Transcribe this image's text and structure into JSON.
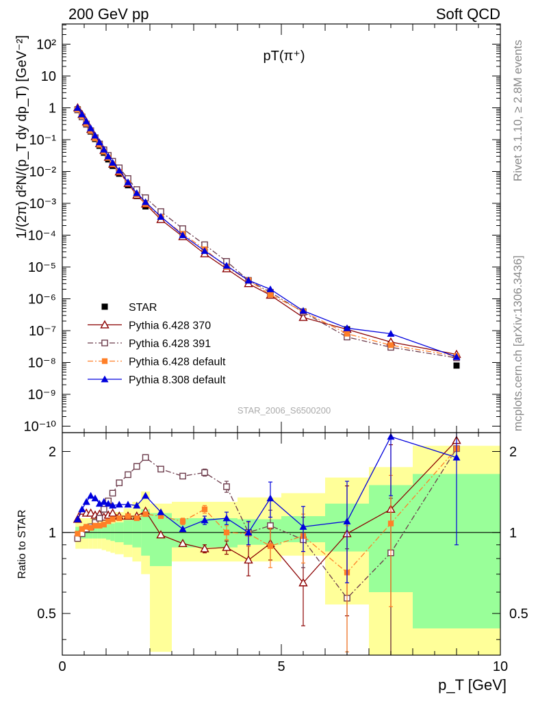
{
  "header": {
    "left": "200 GeV pp",
    "right": "Soft QCD"
  },
  "side_text": {
    "rivet": "Rivet 3.1.10, ≥ 2.8M events",
    "mcplots": "mcplots.cern.ch [arXiv:1306.3436]"
  },
  "chart_data": [
    {
      "type": "scatter",
      "title": "pT(π⁺)",
      "watermark": "STAR_2006_S6500200",
      "ylabel": "1/(2π) d²N/(p_T dy dp_T) [GeV⁻²]",
      "xlim": [
        0,
        10
      ],
      "ylim": [
        3e-11,
        400
      ],
      "yscale": "log",
      "legend_position": "bottom-left",
      "legend": [
        "STAR",
        "Pythia 6.428 370",
        "Pythia 6.428 391",
        "Pythia 6.428 default",
        "Pythia 8.308 default"
      ],
      "ytick_labels": [
        "10⁻¹⁰",
        "10⁻⁹",
        "10⁻⁸",
        "10⁻⁷",
        "10⁻⁶",
        "10⁻⁵",
        "10⁻⁴",
        "10⁻³",
        "10⁻²",
        "10⁻¹",
        "1",
        "10",
        "10²"
      ],
      "series": [
        {
          "name": "STAR",
          "color": "#000000",
          "marker": "filled-square",
          "dash": "none",
          "x": [
            0.35,
            0.45,
            0.55,
            0.65,
            0.75,
            0.85,
            0.95,
            1.05,
            1.15,
            1.3,
            1.5,
            1.7,
            1.9,
            2.25,
            2.75,
            3.25,
            3.75,
            4.25,
            4.75,
            5.5,
            6.5,
            7.5,
            9.0
          ],
          "y": [
            0.9,
            0.52,
            0.3,
            0.18,
            0.105,
            0.064,
            0.039,
            0.024,
            0.015,
            0.0085,
            0.0037,
            0.0017,
            0.0008,
            0.00032,
            0.0001,
            3e-05,
            1e-05,
            3.8e-06,
            1.5e-06,
            4e-07,
            1.1e-07,
            3.6e-08,
            8e-09
          ]
        },
        {
          "name": "Pythia 6.428 370",
          "color": "#8b0000",
          "marker": "open-triangle",
          "dash": "none",
          "x": [
            0.35,
            0.45,
            0.55,
            0.65,
            0.75,
            0.85,
            0.95,
            1.05,
            1.15,
            1.3,
            1.5,
            1.7,
            1.9,
            2.25,
            2.75,
            3.25,
            3.75,
            4.25,
            4.75,
            5.5,
            6.5,
            7.5,
            9.0
          ],
          "y": [
            1.0,
            0.62,
            0.36,
            0.21,
            0.125,
            0.075,
            0.046,
            0.028,
            0.017,
            0.0097,
            0.0042,
            0.0018,
            0.00095,
            0.00031,
            9e-05,
            2.6e-05,
            8.8e-06,
            3e-06,
            1.3e-06,
            2.6e-07,
            1.1e-07,
            4.4e-08,
            1.8e-08
          ]
        },
        {
          "name": "Pythia 6.428 391",
          "color": "#6b3a4a",
          "marker": "open-square",
          "dash": "dashdot",
          "x": [
            0.35,
            0.45,
            0.55,
            0.65,
            0.75,
            0.85,
            0.95,
            1.05,
            1.15,
            1.3,
            1.5,
            1.7,
            1.9,
            2.25,
            2.75,
            3.25,
            3.75,
            4.25,
            4.75,
            5.5,
            6.5,
            7.5,
            9.0
          ],
          "y": [
            0.86,
            0.52,
            0.31,
            0.19,
            0.115,
            0.073,
            0.048,
            0.032,
            0.021,
            0.013,
            0.006,
            0.0027,
            0.0015,
            0.00055,
            0.00016,
            5e-05,
            1.5e-05,
            3.8e-06,
            1.6e-06,
            3.8e-07,
            6.3e-08,
            3e-08,
            1.4e-08
          ]
        },
        {
          "name": "Pythia 6.428 default",
          "color": "#ff7f27",
          "marker": "filled-square",
          "dash": "dashdot",
          "x": [
            0.35,
            0.45,
            0.55,
            0.65,
            0.75,
            0.85,
            0.95,
            1.05,
            1.15,
            1.3,
            1.5,
            1.7,
            1.9,
            2.25,
            2.75,
            3.25,
            3.75,
            4.25,
            4.75,
            5.5,
            6.5,
            7.5,
            9.0
          ],
          "y": [
            0.9,
            0.55,
            0.32,
            0.19,
            0.11,
            0.069,
            0.042,
            0.027,
            0.017,
            0.0097,
            0.0043,
            0.0019,
            0.00095,
            0.00037,
            0.00011,
            3.6e-05,
            1e-05,
            3.8e-06,
            1.35e-06,
            4e-07,
            8e-08,
            3.5e-08,
            1.6e-08
          ]
        },
        {
          "name": "Pythia 8.308 default",
          "color": "#0000dd",
          "marker": "filled-triangle",
          "dash": "none",
          "x": [
            0.35,
            0.45,
            0.55,
            0.65,
            0.75,
            0.85,
            0.95,
            1.05,
            1.15,
            1.3,
            1.5,
            1.7,
            1.9,
            2.25,
            2.75,
            3.25,
            3.75,
            4.25,
            4.75,
            5.5,
            6.5,
            7.5,
            9.0
          ],
          "y": [
            1.0,
            0.63,
            0.38,
            0.23,
            0.135,
            0.083,
            0.049,
            0.03,
            0.019,
            0.0108,
            0.0046,
            0.0021,
            0.0011,
            0.00038,
            0.0001,
            3.2e-05,
            1.1e-05,
            3.8e-06,
            2e-06,
            4.2e-07,
            1.2e-07,
            8e-08,
            1.5e-08
          ]
        }
      ]
    },
    {
      "type": "line",
      "ylabel": "Ratio to STAR",
      "xlabel": "p_T [GeV]",
      "xlim": [
        0,
        10
      ],
      "ylim": [
        0.35,
        2.35
      ],
      "yscale": "log",
      "xtick_labels": [
        "0",
        "5",
        "10"
      ],
      "ytick_labels": [
        "0.5",
        "1",
        "2"
      ],
      "uncertainty_bands": {
        "edges": [
          0.3,
          0.4,
          0.5,
          0.6,
          0.7,
          0.8,
          0.9,
          1.0,
          1.1,
          1.2,
          1.4,
          1.6,
          1.8,
          2.0,
          2.5,
          3.0,
          3.5,
          4.0,
          4.5,
          5.0,
          6.0,
          7.0,
          8.0,
          10.0
        ],
        "inner_color": "#99ff99",
        "inner_lo": [
          0.95,
          0.95,
          0.95,
          0.95,
          0.95,
          0.95,
          0.95,
          0.94,
          0.93,
          0.92,
          0.9,
          0.88,
          0.82,
          0.75,
          0.88,
          0.88,
          0.88,
          0.9,
          0.9,
          0.92,
          0.85,
          0.6,
          0.44,
          0.35
        ],
        "inner_hi": [
          1.05,
          1.05,
          1.05,
          1.05,
          1.05,
          1.06,
          1.06,
          1.07,
          1.08,
          1.09,
          1.11,
          1.15,
          1.22,
          1.18,
          1.13,
          1.13,
          1.13,
          1.12,
          1.12,
          1.15,
          1.28,
          1.5,
          1.65,
          1.65
        ],
        "outer_color": "#ffff99",
        "outer_lo": [
          0.87,
          0.87,
          0.87,
          0.87,
          0.87,
          0.87,
          0.86,
          0.85,
          0.84,
          0.83,
          0.81,
          0.78,
          0.7,
          0.36,
          0.78,
          0.78,
          0.78,
          0.78,
          0.78,
          0.82,
          0.54,
          0.35,
          0.35,
          0.35
        ],
        "outer_hi": [
          1.13,
          1.13,
          1.13,
          1.13,
          1.13,
          1.14,
          1.15,
          1.16,
          1.17,
          1.19,
          1.23,
          1.3,
          1.42,
          1.28,
          1.3,
          1.3,
          1.3,
          1.35,
          1.35,
          1.4,
          1.6,
          1.75,
          2.1,
          2.15
        ]
      },
      "series": [
        {
          "name": "Pythia 6.428 370",
          "color": "#8b0000",
          "marker": "open-triangle",
          "dash": "none",
          "x": [
            0.35,
            0.45,
            0.55,
            0.65,
            0.75,
            0.85,
            0.95,
            1.05,
            1.15,
            1.3,
            1.5,
            1.7,
            1.9,
            2.25,
            2.75,
            3.25,
            3.75,
            4.25,
            4.75,
            5.5,
            6.5,
            7.5,
            9.0
          ],
          "y": [
            1.12,
            1.2,
            1.18,
            1.18,
            1.16,
            1.17,
            1.14,
            1.16,
            1.18,
            1.15,
            1.15,
            1.15,
            1.2,
            0.98,
            0.91,
            0.87,
            0.88,
            0.79,
            0.91,
            0.65,
            0.99,
            1.22,
            2.2
          ],
          "err": [
            0,
            0,
            0,
            0,
            0,
            0,
            0,
            0,
            0,
            0,
            0,
            0,
            0,
            0,
            0,
            0.03,
            0.05,
            0.1,
            0.12,
            0.2,
            0.5,
            0.9,
            0.0
          ]
        },
        {
          "name": "Pythia 6.428 391",
          "color": "#6b3a4a",
          "marker": "open-square",
          "dash": "dashdot",
          "x": [
            0.35,
            0.45,
            0.55,
            0.65,
            0.75,
            0.85,
            0.95,
            1.05,
            1.15,
            1.3,
            1.5,
            1.7,
            1.9,
            2.25,
            2.75,
            3.25,
            3.75,
            4.25,
            4.75,
            5.5,
            6.5,
            7.5,
            9.0
          ],
          "y": [
            0.95,
            0.99,
            1.03,
            1.05,
            1.09,
            1.13,
            1.22,
            1.31,
            1.4,
            1.53,
            1.64,
            1.76,
            1.9,
            1.72,
            1.62,
            1.67,
            1.48,
            1.0,
            1.06,
            0.94,
            0.57,
            0.84,
            2.05
          ],
          "err": [
            0,
            0,
            0,
            0,
            0,
            0,
            0,
            0,
            0,
            0,
            0,
            0,
            0,
            0,
            0,
            0.05,
            0.07,
            0.1,
            0.15,
            0.2,
            0.3,
            0.5,
            0.0
          ]
        },
        {
          "name": "Pythia 6.428 default",
          "color": "#ff7f27",
          "marker": "filled-square",
          "dash": "dashdot",
          "x": [
            0.35,
            0.45,
            0.55,
            0.65,
            0.75,
            0.85,
            0.95,
            1.05,
            1.15,
            1.3,
            1.5,
            1.7,
            1.9,
            2.25,
            2.75,
            3.25,
            3.75,
            4.25,
            4.75,
            5.5,
            6.5,
            7.5,
            9.0
          ],
          "y": [
            0.99,
            1.03,
            1.05,
            1.04,
            1.06,
            1.06,
            1.07,
            1.1,
            1.12,
            1.13,
            1.15,
            1.13,
            1.17,
            1.15,
            1.1,
            1.22,
            1.0,
            0.99,
            0.89,
            0.97,
            0.71,
            1.08,
            2.05
          ],
          "err": [
            0,
            0,
            0,
            0,
            0,
            0,
            0,
            0,
            0,
            0,
            0,
            0,
            0,
            0,
            0.03,
            0.04,
            0.06,
            0.1,
            0.15,
            0.2,
            0.35,
            0.55,
            0.0
          ]
        },
        {
          "name": "Pythia 8.308 default",
          "color": "#0000dd",
          "marker": "filled-triangle",
          "dash": "none",
          "x": [
            0.35,
            0.45,
            0.55,
            0.65,
            0.75,
            0.85,
            0.95,
            1.05,
            1.15,
            1.3,
            1.5,
            1.7,
            1.9,
            2.25,
            2.75,
            3.25,
            3.75,
            4.25,
            4.75,
            5.5,
            6.5,
            7.5,
            9.0
          ],
          "y": [
            1.12,
            1.22,
            1.3,
            1.37,
            1.34,
            1.28,
            1.3,
            1.28,
            1.26,
            1.27,
            1.27,
            1.26,
            1.37,
            1.19,
            1.03,
            1.11,
            1.13,
            1.0,
            1.34,
            1.05,
            1.1,
            2.27,
            1.9
          ],
          "err": [
            0,
            0,
            0,
            0,
            0,
            0,
            0,
            0,
            0,
            0,
            0,
            0,
            0,
            0,
            0,
            0.04,
            0.06,
            0.1,
            0.2,
            0.2,
            0.45,
            0.9,
            1.0
          ]
        }
      ]
    }
  ]
}
